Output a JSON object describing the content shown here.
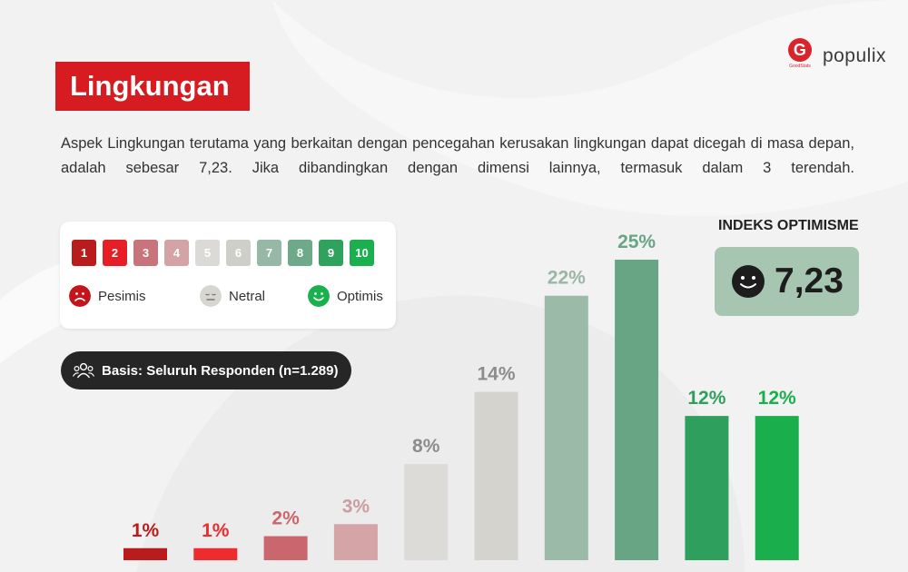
{
  "brand": {
    "g_caption": "GoodStats",
    "populix": "populix"
  },
  "title": "Lingkungan",
  "description": "Aspek Lingkungan terutama yang berkaitan dengan pencegahan kerusakan lingkungan dapat dicegah di masa depan, adalah sebesar 7,23. Jika dibandingkan dengan dimensi lainnya, termasuk dalam 3 terendah.",
  "legend": {
    "scale": [
      {
        "label": "1",
        "color": "#b91c1c"
      },
      {
        "label": "2",
        "color": "#e51f25"
      },
      {
        "label": "3",
        "color": "#c9737a"
      },
      {
        "label": "4",
        "color": "#d3a3a5"
      },
      {
        "label": "5",
        "color": "#dcdad6"
      },
      {
        "label": "6",
        "color": "#cfcfca"
      },
      {
        "label": "7",
        "color": "#97b8a5"
      },
      {
        "label": "8",
        "color": "#6ea98a"
      },
      {
        "label": "9",
        "color": "#2fa25e"
      },
      {
        "label": "10",
        "color": "#19b04d"
      }
    ],
    "pesimis": "Pesimis",
    "netral": "Netral",
    "optimis": "Optimis"
  },
  "basis": "Basis: Seluruh Responden (n=1.289)",
  "index": {
    "title": "INDEKS OPTIMISME",
    "value": "7,23"
  },
  "chart_data": {
    "type": "bar",
    "categories": [
      "1",
      "2",
      "3",
      "4",
      "5",
      "6",
      "7",
      "8",
      "9",
      "10"
    ],
    "values": [
      1,
      1,
      2,
      3,
      8,
      14,
      22,
      25,
      12,
      12
    ],
    "labels": [
      "1%",
      "1%",
      "2%",
      "3%",
      "8%",
      "14%",
      "22%",
      "25%",
      "12%",
      "12%"
    ],
    "colors": [
      "#b91c1c",
      "#ee2b2f",
      "#c9676d",
      "#d4a4a6",
      "#dddbd7",
      "#d4d3ce",
      "#9bbaa8",
      "#67a585",
      "#2e9f5c",
      "#1aaf4c"
    ],
    "label_colors": [
      "#b91c1c",
      "#ee2b2f",
      "#c9676d",
      "#c99ea0",
      "#8c8c8c",
      "#8c8c8c",
      "#9bb6a6",
      "#67a585",
      "#2e9f5c",
      "#1aaf4c"
    ],
    "ylim": [
      0,
      25
    ]
  }
}
